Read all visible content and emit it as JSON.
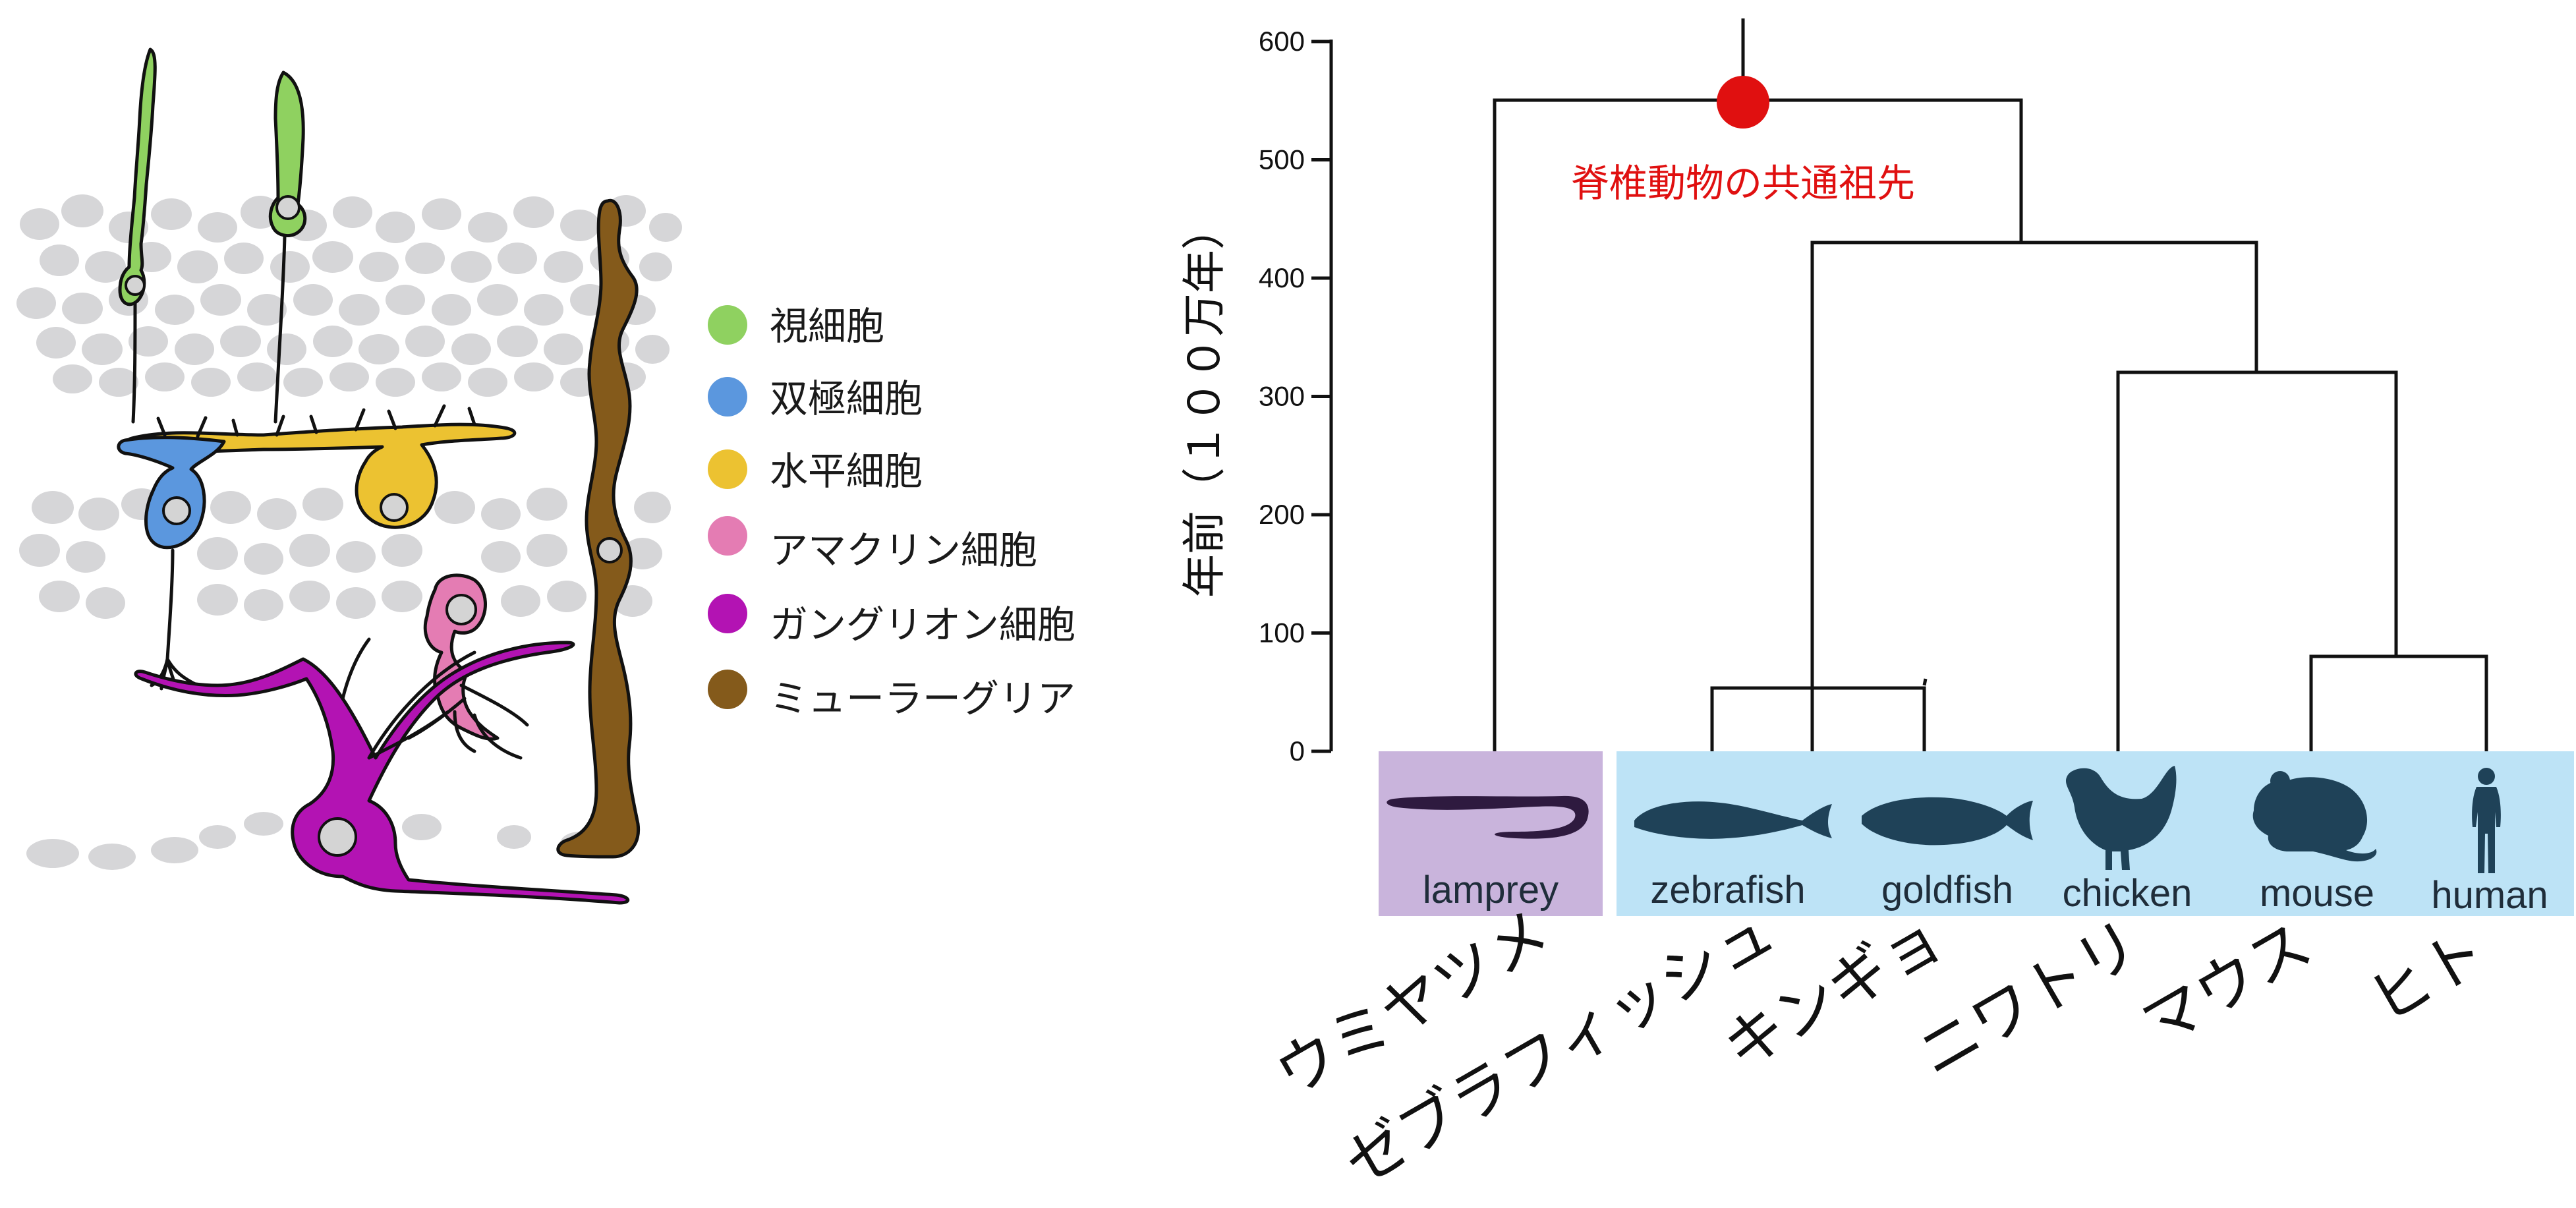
{
  "legend": {
    "items": [
      {
        "label": "視細胞",
        "color": "#8fd160"
      },
      {
        "label": "双極細胞",
        "color": "#5b97de"
      },
      {
        "label": "水平細胞",
        "color": "#ecc231"
      },
      {
        "label": "アマクリン細胞",
        "color": "#e47cb3"
      },
      {
        "label": "ガングリオン細胞",
        "color": "#b313b3"
      },
      {
        "label": "ミューラーグリア",
        "color": "#845a1b"
      }
    ]
  },
  "tree": {
    "ylabel": "年前（１００万年）",
    "ticks": [
      0,
      100,
      200,
      300,
      400,
      500,
      600
    ],
    "ylim": [
      0,
      600
    ],
    "ancestor": {
      "label": "脊椎動物の共通祖先",
      "color": "#e01010",
      "time": 550
    },
    "taxa": [
      {
        "name": "lamprey",
        "jp": "ウミヤツメ",
        "icon": "lamprey-icon"
      },
      {
        "name": "zebrafish",
        "jp": "ゼブラフィッシュ",
        "icon": "zebrafish-icon"
      },
      {
        "name": "goldfish",
        "jp": "キンギョ",
        "icon": "goldfish-icon"
      },
      {
        "name": "chicken",
        "jp": "ニワトリ",
        "icon": "chicken-icon"
      },
      {
        "name": "mouse",
        "jp": "マウス",
        "icon": "mouse-icon"
      },
      {
        "name": "human",
        "jp": "ヒト",
        "icon": "human-icon"
      }
    ],
    "divergence_times": {
      "root": 550,
      "lamprey_vs_gnathostomes": 550,
      "fish_vs_tetrapods": 430,
      "zebrafish_goldfish": 50,
      "chicken_vs_mammals": 320,
      "mouse_human": 80
    },
    "panel_colors": {
      "lamprey": "#c9b4dc",
      "others": "#bde3f6"
    }
  }
}
